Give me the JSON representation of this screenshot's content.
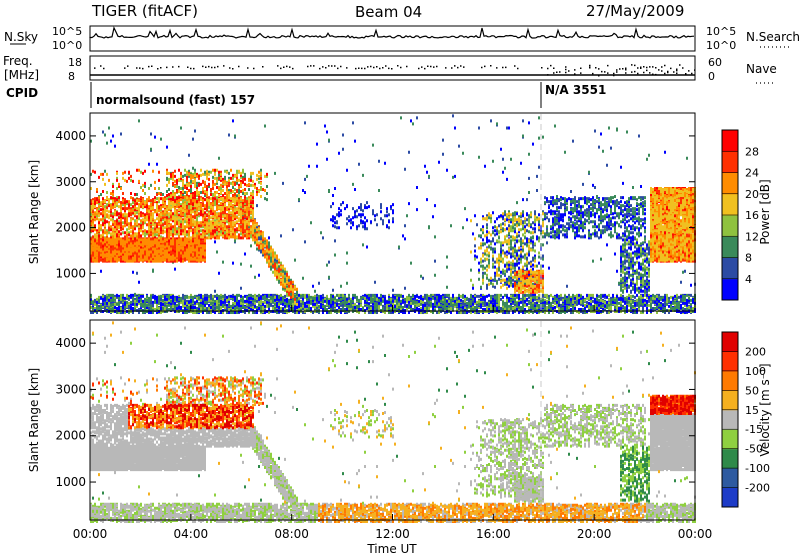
{
  "header": {
    "radar": "TIGER (fitACF)",
    "beam": "Beam 04",
    "date": "27/May/2009"
  },
  "status_panels": {
    "nsky_label": "N.Sky",
    "nsky_scale_top": "10^5",
    "nsky_scale_bottom": "10^0",
    "nsearch_label": "N.Search",
    "nsearch_scale_top": "10^5",
    "nsearch_scale_bottom": "10^0",
    "freq_label_line1": "Freq.",
    "freq_label_line2": "[MHz]",
    "freq_scale_top": "18",
    "freq_scale_bottom": "8",
    "nave_label": "Nave",
    "nave_scale_top": "60",
    "nave_scale_bottom": "0",
    "cpid_label": "CPID",
    "cpid_segments": [
      {
        "text": "normalsound (fast) 157",
        "start_hour": 0
      },
      {
        "text": "N/A 3551",
        "start_hour": 18
      }
    ]
  },
  "chart_data": [
    {
      "type": "heatmap",
      "quantity": "Power",
      "ylabel": "Slant Range [km]",
      "ylim": [
        180,
        4500
      ],
      "yticks": [
        "1000",
        "2000",
        "3000",
        "4000"
      ],
      "xlim": [
        0,
        24
      ],
      "colorbar_label": "Power [dB]",
      "colorbar_ticks": [
        "4",
        "8",
        "12",
        "16",
        "20",
        "24",
        "28"
      ],
      "colors": [
        "#0000ff",
        "#2c4ba4",
        "#3a8a5a",
        "#8fc23f",
        "#f0c020",
        "#ff8c00",
        "#ff3000",
        "#ff0000"
      ]
    },
    {
      "type": "heatmap",
      "quantity": "Velocity",
      "ylabel": "Slant Range [km]",
      "ylim": [
        180,
        4500
      ],
      "yticks": [
        "1000",
        "2000",
        "3000",
        "4000"
      ],
      "xlim": [
        0,
        24
      ],
      "xlabel": "Time UT",
      "xticks": [
        "00:00",
        "04:00",
        "08:00",
        "12:00",
        "16:00",
        "20:00",
        "00:00"
      ],
      "colorbar_label": "Velocity [m s⁻¹]",
      "colorbar_ticks": [
        "200",
        "100",
        "50",
        "15",
        "-15",
        "-50",
        "-100",
        "-200"
      ],
      "colors": [
        "#1e3cc8",
        "#2e5aa0",
        "#2f8a4a",
        "#8fd040",
        "#b8b8b8",
        "#f5b020",
        "#ff7a00",
        "#ff3000",
        "#e00000"
      ]
    }
  ]
}
